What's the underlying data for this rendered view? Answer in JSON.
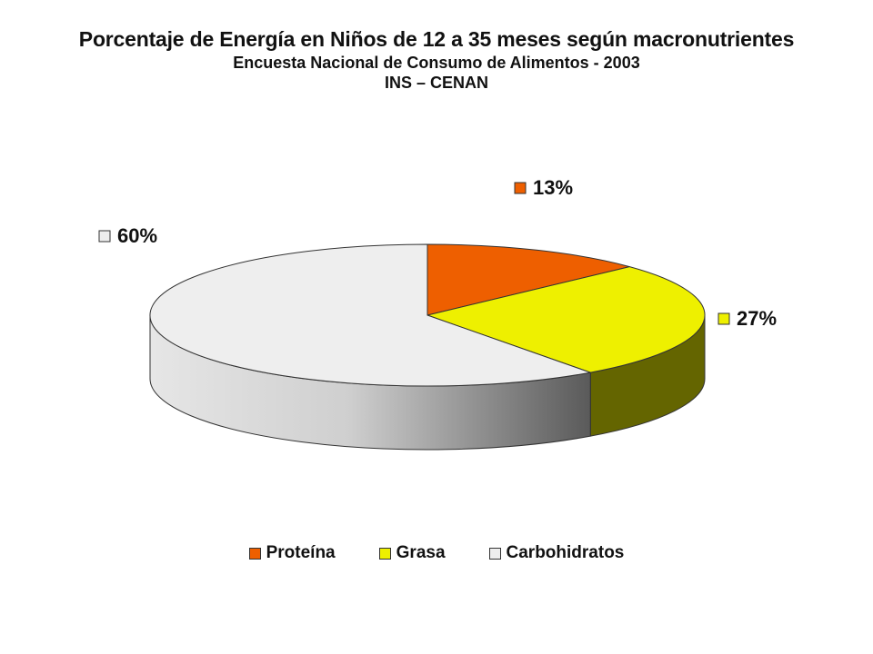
{
  "chart_data": {
    "type": "pie",
    "title": "Porcentaje de Energía en Niños de 12 a 35 meses según macronutrientes",
    "subtitle": "Encuesta Nacional de Consumo de Alimentos - 2003",
    "source": "INS – CENAN",
    "slices": [
      {
        "label": "Proteína",
        "value": 13,
        "value_label": "13%",
        "color": "#EE5F00"
      },
      {
        "label": "Grasa",
        "value": 27,
        "value_label": "27%",
        "color": "#EEF000"
      },
      {
        "label": "Carbohidratos",
        "value": 60,
        "value_label": "60%",
        "color": "#EEEEEE"
      }
    ],
    "style": "3d-exploded-none",
    "legend_position": "bottom"
  }
}
